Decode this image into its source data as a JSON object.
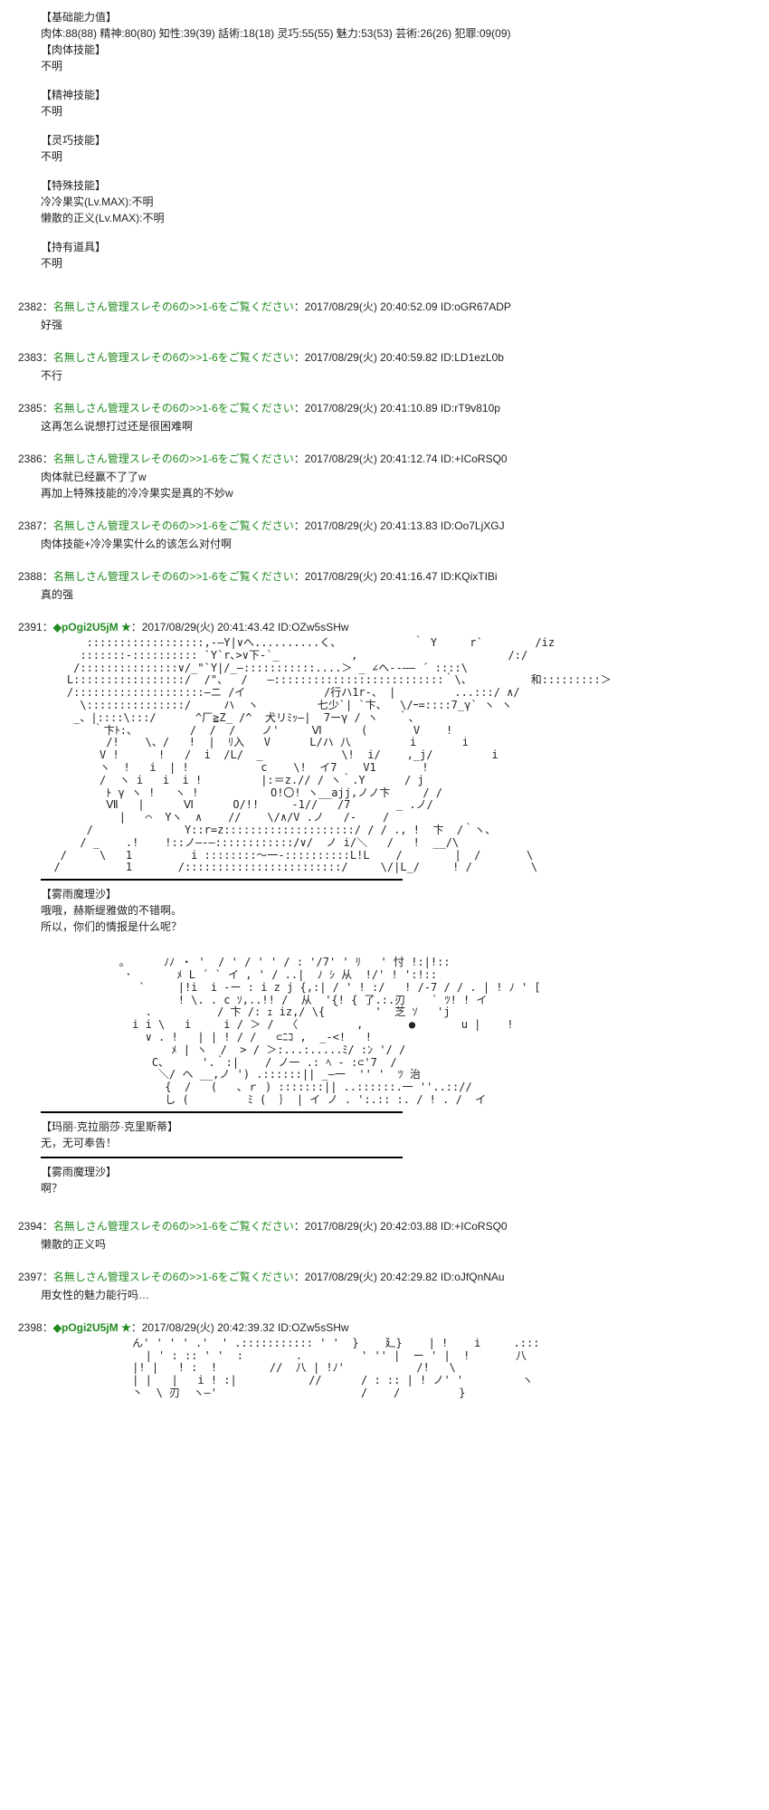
{
  "stats": {
    "header": "【基础能力值】",
    "line": "肉体:88(88) 精神:80(80) 知性:39(39) 話術:18(18) 灵巧:55(55) 魅力:53(53) 芸術:26(26) 犯罪:09(09)",
    "sections": [
      {
        "title": "【肉体技能】",
        "value": "不明"
      },
      {
        "title": "【精神技能】",
        "value": "不明"
      },
      {
        "title": "【灵巧技能】",
        "value": "不明"
      },
      {
        "title": "【特殊技能】",
        "value": "冷冷果实(Lv.MAX):不明\n懒散的正义(Lv.MAX):不明"
      },
      {
        "title": "【持有道具】",
        "value": "不明"
      }
    ]
  },
  "posts": [
    {
      "num": "2382",
      "name": "名無しさん管理スレその6の>>1-6をご覧ください",
      "date": "2017/08/29(火) 20:40:52.09",
      "id": "oGR67ADP",
      "body": "好强"
    },
    {
      "num": "2383",
      "name": "名無しさん管理スレその6の>>1-6をご覧ください",
      "date": "2017/08/29(火) 20:40:59.82",
      "id": "LD1ezL0b",
      "body": "不行"
    },
    {
      "num": "2385",
      "name": "名無しさん管理スレその6の>>1-6をご覧ください",
      "date": "2017/08/29(火) 20:41:10.89",
      "id": "rT9v810p",
      "body": "这再怎么说想打过还是很困难啊"
    },
    {
      "num": "2386",
      "name": "名無しさん管理スレその6の>>1-6をご覧ください",
      "date": "2017/08/29(火) 20:41:12.74",
      "id": "+ICoRSQ0",
      "body": "肉体就已经赢不了了w\n再加上特殊技能的冷冷果实是真的不妙w"
    },
    {
      "num": "2387",
      "name": "名無しさん管理スレその6の>>1-6をご覧ください",
      "date": "2017/08/29(火) 20:41:13.83",
      "id": "Oo7LjXGJ",
      "body": "肉体技能+冷冷果实什么的该怎么对付啊"
    },
    {
      "num": "2388",
      "name": "名無しさん管理スレその6の>>1-6をご覧ください",
      "date": "2017/08/29(火) 20:41:16.47",
      "id": "KQixTIBi",
      "body": "真的强"
    }
  ],
  "tripPost1": {
    "num": "2391",
    "trip": "◆pOgi2U5jM ★",
    "date": "2017/08/29(火) 20:41:43.42",
    "id": "OZw5sSHw",
    "dialog1": {
      "speaker": "【雾雨魔理沙】",
      "text": "哦哦，赫斯缇雅做的不错啊。\n所以，你们的情报是什么呢？"
    },
    "dialog2": {
      "speaker": "【玛丽·克拉丽莎·克里斯蒂】",
      "text": "无，无可奉告！"
    },
    "dialog3": {
      "speaker": "【雾雨魔理沙】",
      "text": "啊？"
    }
  },
  "posts2": [
    {
      "num": "2394",
      "name": "名無しさん管理スレその6の>>1-6をご覧ください",
      "date": "2017/08/29(火) 20:42:03.88",
      "id": "+ICoRSQ0",
      "body": "懒散的正义吗"
    },
    {
      "num": "2397",
      "name": "名無しさん管理スレその6の>>1-6をご覧ください",
      "date": "2017/08/29(火) 20:42:29.82",
      "id": "oJfQnNAu",
      "body": "用女性的魅力能行吗…"
    }
  ],
  "tripPost2": {
    "num": "2398",
    "trip": "◆pOgi2U5jM ★",
    "date": "2017/08/29(火) 20:42:39.32",
    "id": "OZw5sSHw"
  },
  "aa1": "       ::::::::::::::::::,-―Y|∨へ..........く、           ｀ Y     r` 　　　  /iz\n      :::::::-:::::::::: `Y`r､>∨下-`_           ,                       /:/\n     /:::::::::::::::∨/_\"`Y|/_―:::::::::::....＞ _ ∠へ--―― ´ ::::\\\n    L:::::::::::::::::/  /\"、  /   ―::::::::::::::::::::::::::｀\\、         和:::::::::＞\n    /::::::::::::::::::::―ニ /イ            /行ハ1r-、 |         ...:::/ ∧/\n      \\:::::::::::::::/     ハ  ヽ         七少`| `卞、  \\/ｰ=::::7_γ` ヽ ヽ\n     _、|::::\\:::/      ^厂≧Z_ /^  犬リﾐｯ―|  7ーγ / ヽ   ｀、\n        ｀卞ﾄ:、        /  /  /    ノ'     Ⅵ      (       V    !\n          /!    \\、/   !  |  ﾘ入   V      L/ハ 八         i       i\n         V !      !   /  i  /L/  _            \\!  i/    ,_j/         i\n         ヽ  !   i  | !           c    \\!  イ7    V1       !\n         /  ヽ i   i  i !         |:＝z.// / ヽ｀.Y      / j\n          ﾄ γ ヽ !   ヽ !           O!〇! ヽ__ajj,ノノ卞     / /\n          Ⅶ   |      Ⅵ      O/!!     -1//   /7       _ .ノ/\n            |   ⌒  Yヽ  ∧    //    \\/∧/V .ノ   /-    /\n       /              Y::r=z::::::::::::::::::::/ / / ., !  卞  /｀ヽ、\n      / _    .!    !::ノ―-―::::::::::::/∨/  ノ i/＼   /   !  __/\\\n   /     \\   1         i ::::::::～一-::::::::::L!L    /        |  /       \\\n  /          1       /::::::::::::::::::::::::/     \\/|L_/     ! /         \\",
  "aa2": "            ｡      ﾉﾉ ・ '  / ' / ' ' / : '/7' ' ﾘ   ' 忖 !:|!::\n             ･       ﾒ L ´ ` イ , ' / ..|  ﾉ ｼ 从  !/' ! ':!::\n               `     |!i  i -ー : i z j {,:| / ' ! :/   ! /-7 / / . | ! ﾉ ' [\n                     ! \\. . c ｿ,..!! /  从  '{! { 了.:.刃    ` ﾂ! ! イ\n                .          / 卞 /: ｪ iz,/ \\{ ｀     '  芝 ｿ   'j\n              i i \\   i     i / ＞ /  〈         ,       ●       u |    !\n                ∨ . !   | | ! / /   ⊂ﾆｺ ,  _-<!   !\n                    ﾒ | ヽ  /  > / ＞:...:.....ﾐ/ :ﾝ '/ /\n                 C、     '.｀:|    / ノ一 .: ﾍ - :⊂'7  /\n                  ＼/ ヘ __,ノ ') .::::::|| _―一  '' '  ﾂ 治\n                   {  /   (   、ｒ ) :::::::|| ..::::::.一 ''..:://\n                   し (         ﾐ (  ｝ | イ ノ . ':.:: :. / ! . /  イ",
  "aa3": "              ん' ' ' ' .'  ' .::::::::::: ' '  }    廴}    | !    i     .:::\n                | ' : :: ' '  :        .         ' '' |  ー ' |  !       八\n              |! |   ! :  !        //  八 | !ﾉ'           /!   \\\n              | |   |   i ! :|           //      / : :: | ! ノ' '         ヽ\n              丶  \\ 刃  ヽ―'                      /    /         }"
}
